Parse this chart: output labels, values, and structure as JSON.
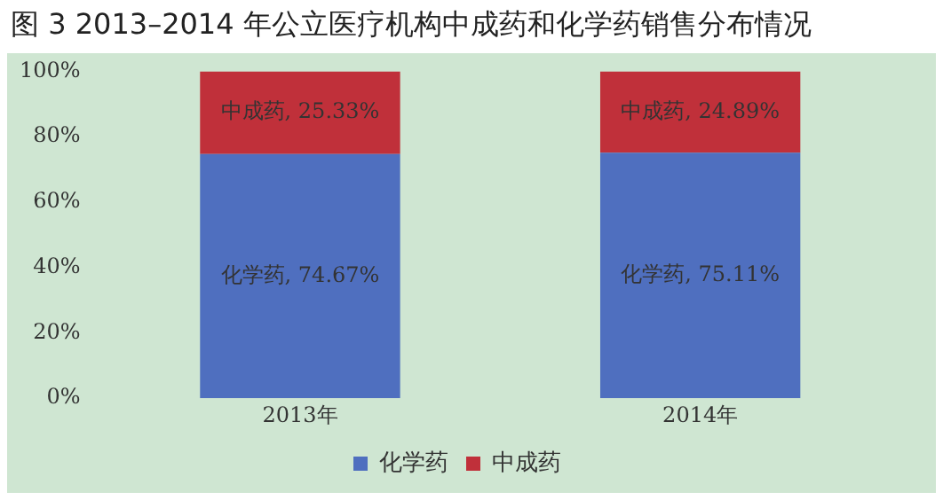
{
  "chart_data": {
    "type": "bar",
    "title": "图 3  2013–2014 年公立医疗机构中成药和化学药销售分布情况",
    "categories": [
      "2013年",
      "2014年"
    ],
    "stacked": true,
    "series": [
      {
        "name": "化学药",
        "color": "#4f6fbf",
        "values": [
          74.67,
          75.11
        ],
        "value_labels": [
          "化学药, 74.67%",
          "化学药, 75.11%"
        ]
      },
      {
        "name": "中成药",
        "color": "#c0303a",
        "values": [
          25.33,
          24.89
        ],
        "value_labels": [
          "中成药, 25.33%",
          "中成药, 24.89%"
        ]
      }
    ],
    "ylim": [
      0,
      100
    ],
    "yticks": [
      {
        "value": 0,
        "label": "0%"
      },
      {
        "value": 20,
        "label": "20%"
      },
      {
        "value": 40,
        "label": "40%"
      },
      {
        "value": 60,
        "label": "60%"
      },
      {
        "value": 80,
        "label": "80%"
      },
      {
        "value": 100,
        "label": "100%"
      }
    ],
    "grid": false,
    "legend": "bottom"
  }
}
